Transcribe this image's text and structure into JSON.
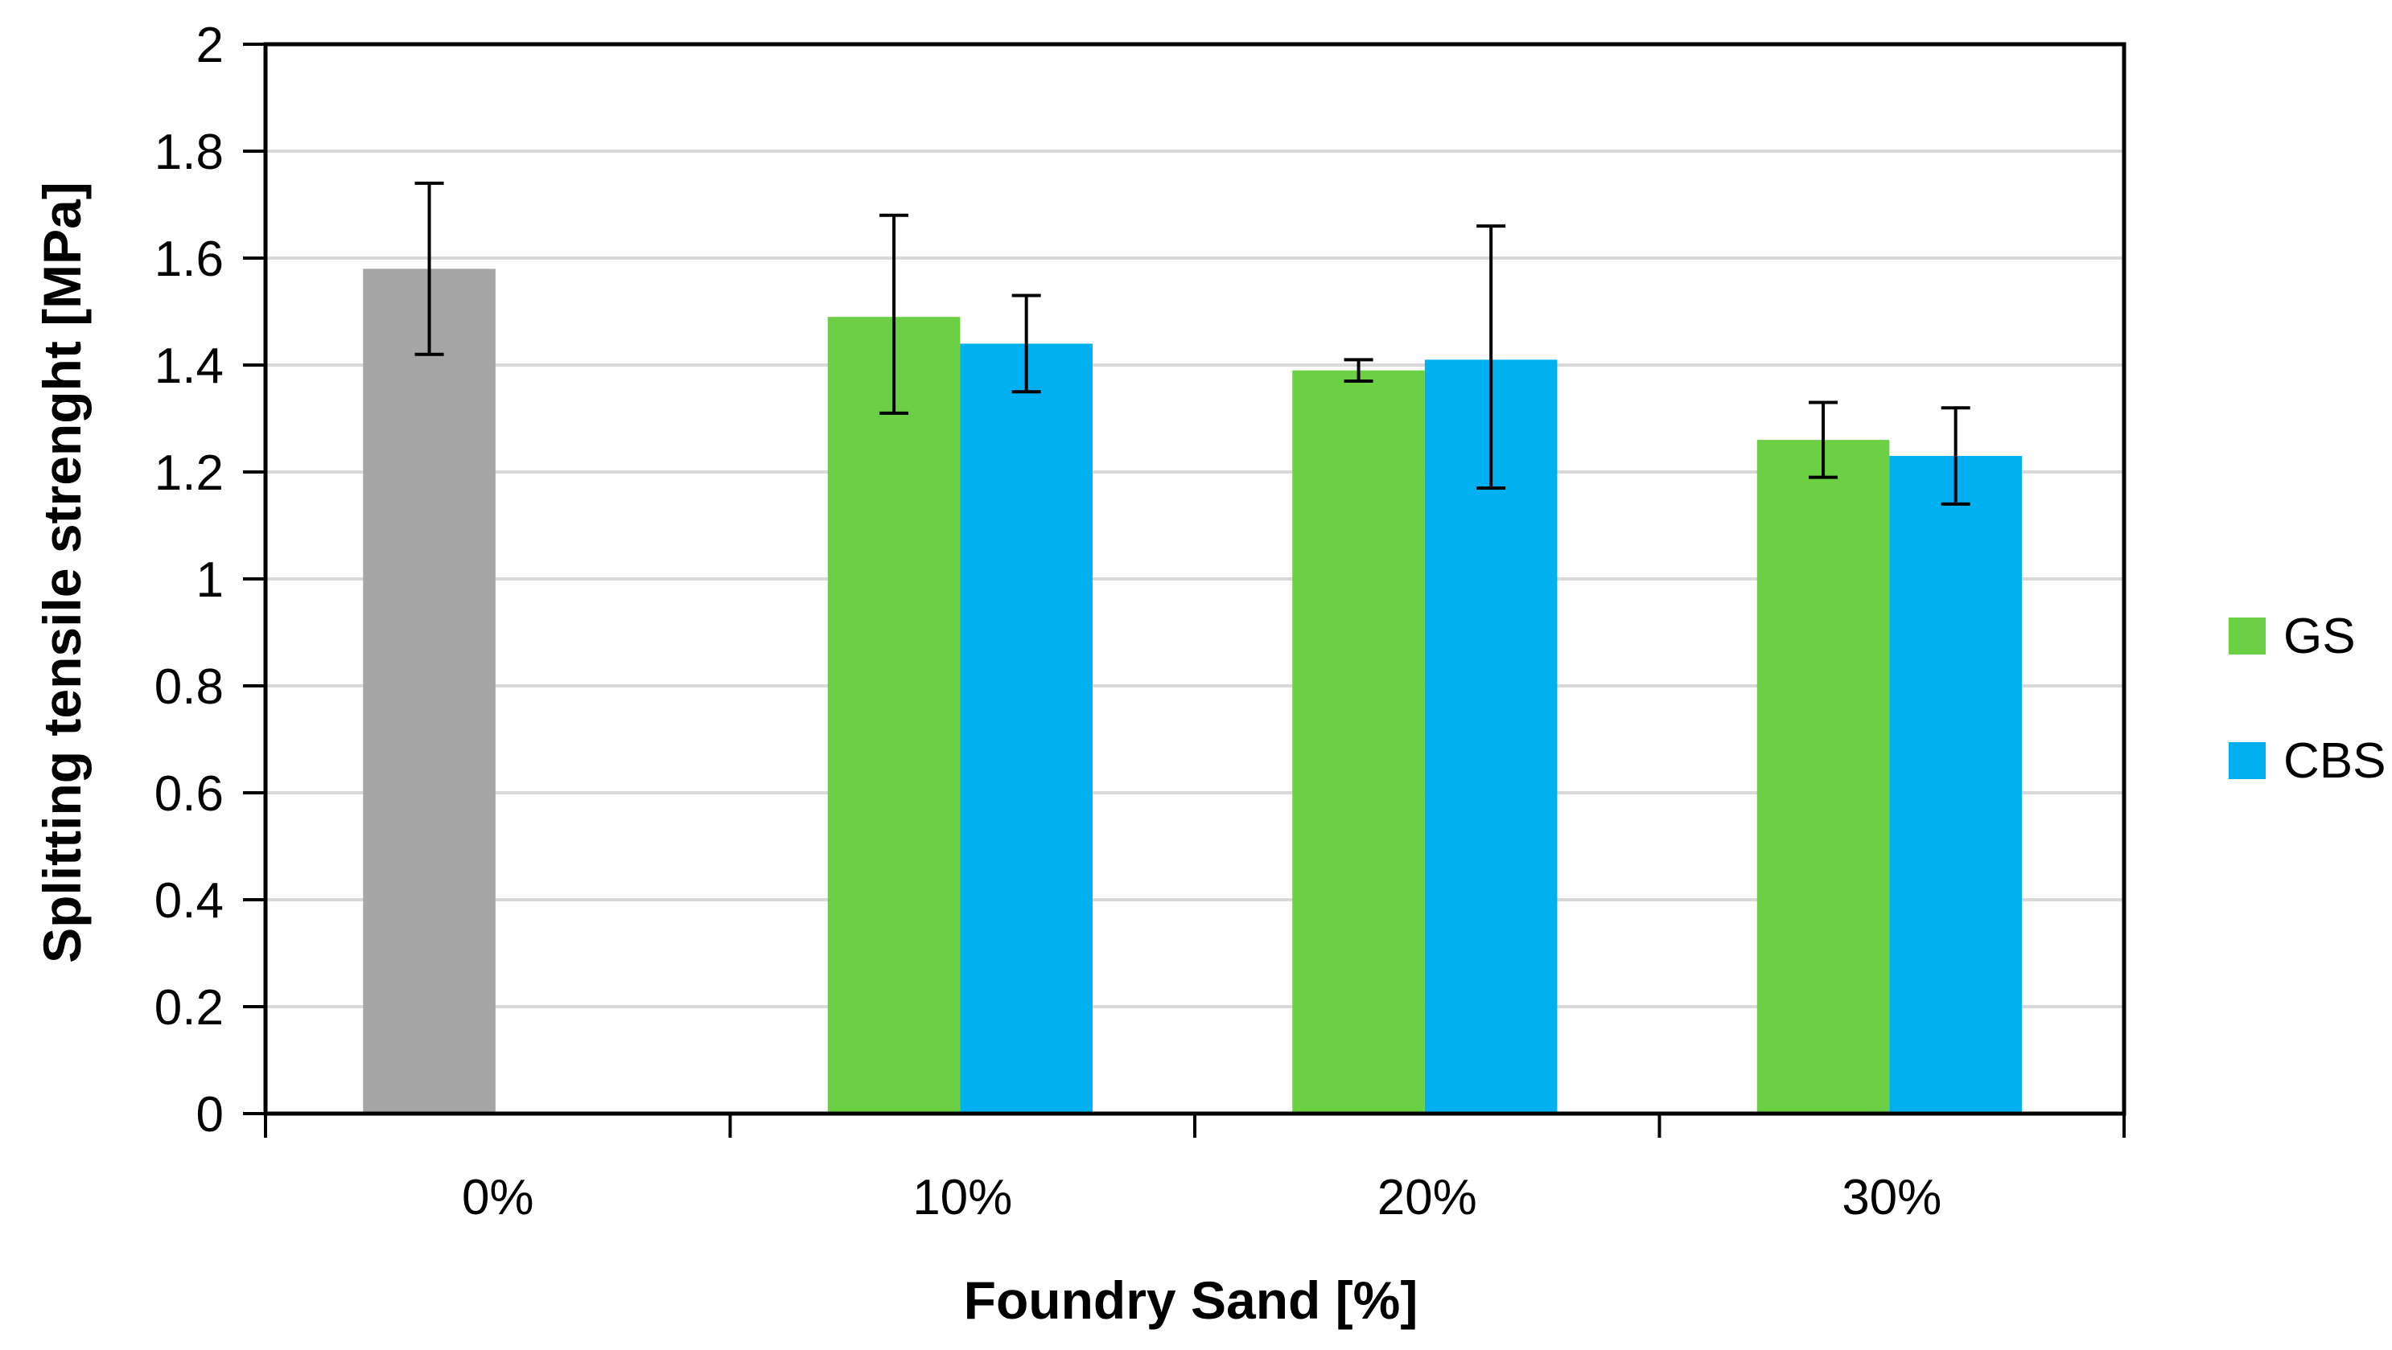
{
  "chart_data": {
    "type": "bar",
    "categories": [
      "0%",
      "10%",
      "20%",
      "30%"
    ],
    "xlabel": "Foundry Sand [%]",
    "ylabel": "Splitting tensile strenght  [MPa]",
    "ylim": [
      0,
      2
    ],
    "yticks": [
      0,
      0.2,
      0.4,
      0.6,
      0.8,
      1,
      1.2,
      1.4,
      1.6,
      1.8,
      2
    ],
    "ytick_labels": [
      "0",
      "0.2",
      "0.4",
      "0.6",
      "0.8",
      "1",
      "1.2",
      "1.4",
      "1.6",
      "1.8",
      "2"
    ],
    "grid": true,
    "legend_position": "right",
    "series": [
      {
        "name": "",
        "color": "#a6a6a6",
        "in_legend": false,
        "values": [
          1.58,
          null,
          null,
          null
        ],
        "error_low": [
          1.42,
          null,
          null,
          null
        ],
        "error_high": [
          1.74,
          null,
          null,
          null
        ]
      },
      {
        "name": "GS",
        "color": "#6cd045",
        "in_legend": true,
        "values": [
          null,
          1.49,
          1.39,
          1.26
        ],
        "error_low": [
          null,
          1.31,
          1.37,
          1.19
        ],
        "error_high": [
          null,
          1.68,
          1.41,
          1.33
        ]
      },
      {
        "name": "CBS",
        "color": "#00b0f0",
        "in_legend": true,
        "values": [
          null,
          1.44,
          1.41,
          1.23
        ],
        "error_low": [
          null,
          1.35,
          1.17,
          1.14
        ],
        "error_high": [
          null,
          1.53,
          1.66,
          1.32
        ]
      }
    ],
    "colors": {
      "grid": "#d9d9d9",
      "axis": "#000000",
      "error_bar": "#000000"
    }
  }
}
